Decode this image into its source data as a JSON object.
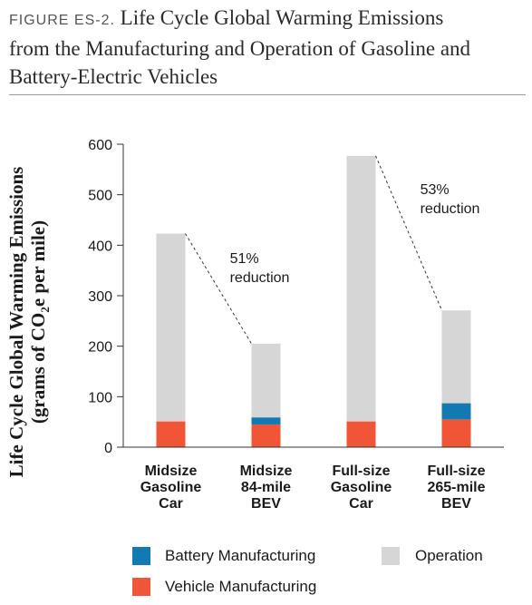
{
  "header": {
    "figure_label": "FIGURE ES-2.",
    "title_line1": "Life Cycle Global Warming Emissions",
    "title_line2": "from the Manufacturing and Operation of Gasoline and",
    "title_line3": "Battery-Electric Vehicles"
  },
  "chart_data": {
    "type": "bar",
    "stacked": true,
    "ylabel_line1": "Life Cycle Global Warming Emissions",
    "ylabel_line2_pre": "(grams of CO",
    "ylabel_sub": "2",
    "ylabel_line2_post": "e per mile)",
    "ylim": [
      0,
      600
    ],
    "yticks": [
      0,
      100,
      200,
      300,
      400,
      500,
      600
    ],
    "grid": false,
    "legend_position": "bottom",
    "categories": [
      [
        "Midsize",
        "Gasoline",
        "Car"
      ],
      [
        "Midsize",
        "84-mile",
        "BEV"
      ],
      [
        "Full-size",
        "Gasoline",
        "Car"
      ],
      [
        "Full-size",
        "265-mile",
        "BEV"
      ]
    ],
    "series": [
      {
        "name": "Vehicle Manufacturing",
        "color": "#ef5536",
        "values": [
          51,
          45,
          51,
          55
        ]
      },
      {
        "name": "Battery Manufacturing",
        "color": "#1279b3",
        "values": [
          0,
          14,
          0,
          32
        ]
      },
      {
        "name": "Operation",
        "color": "#d6d6d6",
        "values": [
          372,
          146,
          526,
          184
        ]
      }
    ],
    "totals": [
      423,
      205,
      577,
      271
    ],
    "annotations": [
      {
        "from_bar": 0,
        "to_bar": 1,
        "line1": "51%",
        "line2": "reduction"
      },
      {
        "from_bar": 2,
        "to_bar": 3,
        "line1": "53%",
        "line2": "reduction"
      }
    ]
  }
}
